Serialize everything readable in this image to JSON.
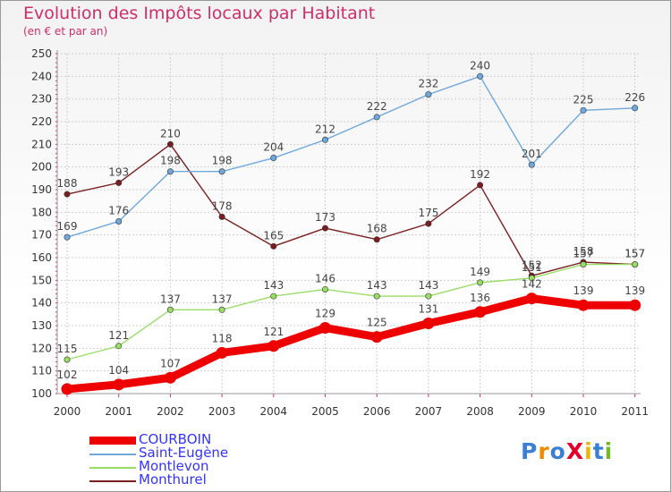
{
  "title": "Evolution des Impôts locaux par Habitant",
  "subtitle": "(en € et par an)",
  "logo": "ProXiti",
  "colors": {
    "title": "#cc2f6a",
    "legend_text": "#3333ff",
    "grid": "#cfcfcf",
    "axis_text": "#333333",
    "value_text": "#444444"
  },
  "chart_data": {
    "type": "line",
    "categories": [
      "2000",
      "2001",
      "2002",
      "2003",
      "2004",
      "2005",
      "2006",
      "2007",
      "2008",
      "2009",
      "2010",
      "2011"
    ],
    "ylim": [
      100,
      250
    ],
    "yticks": [
      100,
      110,
      120,
      130,
      140,
      150,
      160,
      170,
      180,
      190,
      200,
      210,
      220,
      230,
      240,
      250
    ],
    "grid": true,
    "legend_position": "bottom-left",
    "series": [
      {
        "name": "COURBOIN",
        "values": [
          102,
          104,
          107,
          118,
          121,
          129,
          125,
          131,
          136,
          142,
          139,
          139
        ],
        "color": "#ee0000",
        "width": 9,
        "marker": 6.5
      },
      {
        "name": "Saint-Eugène",
        "values": [
          169,
          176,
          198,
          198,
          204,
          212,
          222,
          232,
          240,
          201,
          225,
          226
        ],
        "color": "#6fa8dc",
        "width": 1.4,
        "marker": 3.2
      },
      {
        "name": "Montlevon",
        "values": [
          115,
          121,
          137,
          137,
          143,
          146,
          143,
          143,
          149,
          151,
          157,
          157
        ],
        "color": "#99dd66",
        "width": 1.4,
        "marker": 3.2
      },
      {
        "name": "Monthurel",
        "values": [
          188,
          193,
          210,
          178,
          165,
          173,
          168,
          175,
          192,
          152,
          158,
          157
        ],
        "color": "#7a1f1f",
        "width": 1.4,
        "marker": 3.2
      }
    ]
  }
}
